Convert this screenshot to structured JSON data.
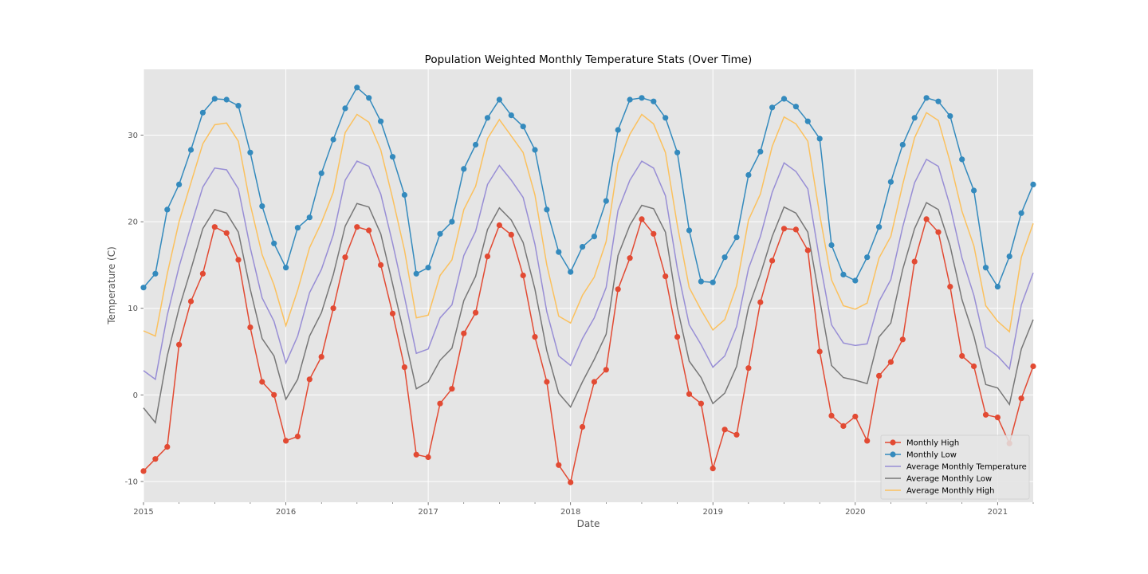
{
  "chart_data": {
    "type": "line",
    "title": "Population Weighted Monthly Temperature Stats (Over Time)",
    "xlabel": "Date",
    "ylabel": "Temperature (C)",
    "x_start": "2015-01",
    "x_end": "2021-04",
    "x_major_ticks": [
      "2015",
      "2016",
      "2017",
      "2018",
      "2019",
      "2020",
      "2021"
    ],
    "y_ticks": [
      "-10",
      "0",
      "10",
      "20",
      "30"
    ],
    "ylim": [
      -12.4,
      37.6
    ],
    "grid": true,
    "legend_position": "lower-right",
    "x": [
      "2015-01",
      "2015-02",
      "2015-03",
      "2015-04",
      "2015-05",
      "2015-06",
      "2015-07",
      "2015-08",
      "2015-09",
      "2015-10",
      "2015-11",
      "2015-12",
      "2016-01",
      "2016-02",
      "2016-03",
      "2016-04",
      "2016-05",
      "2016-06",
      "2016-07",
      "2016-08",
      "2016-09",
      "2016-10",
      "2016-11",
      "2016-12",
      "2017-01",
      "2017-02",
      "2017-03",
      "2017-04",
      "2017-05",
      "2017-06",
      "2017-07",
      "2017-08",
      "2017-09",
      "2017-10",
      "2017-11",
      "2017-12",
      "2018-01",
      "2018-02",
      "2018-03",
      "2018-04",
      "2018-05",
      "2018-06",
      "2018-07",
      "2018-08",
      "2018-09",
      "2018-10",
      "2018-11",
      "2018-12",
      "2019-01",
      "2019-02",
      "2019-03",
      "2019-04",
      "2019-05",
      "2019-06",
      "2019-07",
      "2019-08",
      "2019-09",
      "2019-10",
      "2019-11",
      "2019-12",
      "2020-01",
      "2020-02",
      "2020-03",
      "2020-04",
      "2020-05",
      "2020-06",
      "2020-07",
      "2020-08",
      "2020-09",
      "2020-10",
      "2020-11",
      "2020-12",
      "2021-01",
      "2021-02",
      "2021-03",
      "2021-04"
    ],
    "series": [
      {
        "name": "Monthly High",
        "color": "#E24A33",
        "marker": true,
        "values": [
          -8.8,
          -7.4,
          -6.0,
          5.8,
          10.8,
          14.0,
          19.4,
          18.7,
          15.6,
          7.8,
          1.5,
          0.0,
          -5.3,
          -4.8,
          1.8,
          4.4,
          10.0,
          15.9,
          19.4,
          19.0,
          15.0,
          9.4,
          3.2,
          -6.9,
          -7.2,
          -1.0,
          0.7,
          7.1,
          9.5,
          16.0,
          19.6,
          18.5,
          13.8,
          6.7,
          1.5,
          -8.1,
          -10.1,
          -3.7,
          1.5,
          2.9,
          12.2,
          15.8,
          20.3,
          18.6,
          13.7,
          6.7,
          0.1,
          -1.0,
          -8.5,
          -4.0,
          -4.6,
          3.1,
          10.7,
          15.5,
          19.2,
          19.1,
          16.7,
          5.0,
          -2.4,
          -3.6,
          -2.5,
          -5.3,
          2.2,
          3.8,
          6.4,
          15.4,
          20.3,
          18.8,
          12.5,
          4.5,
          3.3,
          -2.3,
          -2.6,
          -5.6,
          -0.4,
          3.3
        ]
      },
      {
        "name": "Monthly Low",
        "color": "#348ABD",
        "marker": true,
        "values": [
          12.4,
          14.0,
          21.4,
          24.3,
          28.3,
          32.6,
          34.2,
          34.1,
          33.4,
          28.0,
          21.8,
          17.5,
          14.7,
          19.3,
          20.5,
          25.6,
          29.5,
          33.1,
          35.5,
          34.3,
          31.6,
          27.5,
          23.1,
          14.0,
          14.7,
          18.6,
          20.0,
          26.1,
          28.9,
          32.0,
          34.1,
          32.3,
          31.0,
          28.3,
          21.4,
          16.5,
          14.2,
          17.1,
          18.3,
          22.4,
          30.6,
          34.1,
          34.3,
          33.9,
          32.0,
          28.0,
          19.0,
          13.1,
          13.0,
          15.9,
          18.2,
          25.4,
          28.1,
          33.2,
          34.2,
          33.3,
          31.6,
          29.6,
          17.3,
          13.9,
          13.2,
          15.9,
          19.4,
          24.6,
          28.9,
          32.0,
          34.3,
          33.9,
          32.2,
          27.2,
          23.6,
          14.7,
          12.5,
          16.0,
          21.0,
          24.3
        ]
      },
      {
        "name": "Average Monthly Temperature",
        "color": "#988ED5",
        "marker": false,
        "values": [
          2.8,
          1.8,
          9.2,
          14.8,
          19.5,
          24.0,
          26.2,
          26.0,
          23.8,
          17.0,
          11.2,
          8.5,
          3.7,
          6.8,
          11.8,
          14.5,
          18.5,
          24.8,
          27.0,
          26.4,
          23.2,
          17.5,
          11.3,
          4.8,
          5.3,
          8.9,
          10.4,
          16.1,
          18.9,
          24.3,
          26.5,
          24.8,
          22.8,
          17.4,
          9.6,
          4.5,
          3.4,
          6.5,
          8.9,
          12.4,
          21.3,
          24.8,
          27.0,
          26.2,
          23.0,
          14.6,
          8.1,
          5.8,
          3.2,
          4.5,
          7.9,
          14.6,
          18.3,
          23.4,
          26.8,
          25.8,
          23.8,
          15.5,
          8.1,
          6.0,
          5.7,
          5.9,
          10.8,
          13.3,
          19.4,
          24.5,
          27.2,
          26.4,
          21.8,
          15.8,
          11.5,
          5.5,
          4.5,
          3.0,
          10.4,
          14.1
        ]
      },
      {
        "name": "Average Monthly Low",
        "color": "#777777",
        "marker": false,
        "values": [
          -1.5,
          -3.2,
          4.5,
          10.0,
          14.5,
          19.2,
          21.4,
          21.0,
          18.8,
          12.2,
          6.5,
          4.5,
          -0.5,
          1.8,
          6.8,
          9.5,
          13.9,
          19.5,
          22.1,
          21.7,
          18.6,
          12.8,
          6.8,
          0.7,
          1.5,
          4.0,
          5.4,
          10.9,
          13.7,
          19.1,
          21.6,
          20.2,
          17.6,
          12.2,
          5.1,
          0.2,
          -1.4,
          1.5,
          4.1,
          7.0,
          16.1,
          19.6,
          21.9,
          21.5,
          18.8,
          10.1,
          3.9,
          2.0,
          -1.0,
          0.2,
          3.3,
          10.1,
          13.9,
          18.3,
          21.7,
          21.0,
          18.8,
          11.0,
          3.4,
          2.0,
          1.7,
          1.3,
          6.7,
          8.3,
          14.5,
          19.2,
          22.2,
          21.4,
          17.2,
          11.0,
          6.8,
          1.2,
          0.8,
          -1.1,
          5.3,
          8.7
        ]
      },
      {
        "name": "Average Monthly High",
        "color": "#FBC15E",
        "marker": false,
        "values": [
          7.4,
          6.8,
          14.0,
          20.0,
          24.5,
          29.0,
          31.2,
          31.4,
          29.3,
          22.0,
          16.2,
          12.7,
          8.0,
          12.1,
          17.0,
          19.9,
          23.4,
          30.3,
          32.4,
          31.5,
          28.3,
          22.7,
          16.7,
          8.9,
          9.2,
          13.8,
          15.6,
          21.4,
          24.1,
          29.6,
          31.8,
          29.9,
          28.0,
          23.1,
          15.0,
          9.1,
          8.3,
          11.5,
          13.6,
          17.7,
          26.8,
          30.1,
          32.4,
          31.3,
          28.0,
          19.6,
          12.4,
          9.8,
          7.5,
          8.7,
          12.6,
          20.2,
          23.2,
          28.7,
          32.1,
          31.3,
          29.3,
          20.8,
          13.3,
          10.3,
          9.9,
          10.6,
          15.8,
          18.3,
          24.3,
          29.7,
          32.6,
          31.7,
          26.9,
          21.2,
          17.2,
          10.3,
          8.5,
          7.3,
          15.9,
          19.8
        ]
      }
    ]
  }
}
